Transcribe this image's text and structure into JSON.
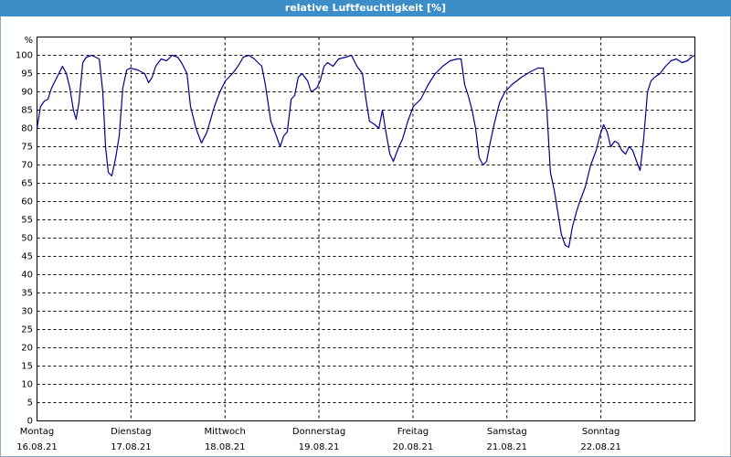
{
  "chart_data": {
    "type": "line",
    "title": "relative Luftfeuchtigkeit [%]",
    "y_label": "%",
    "color": "#00008b",
    "grid": true,
    "xlim": [
      0,
      168
    ],
    "ylim": [
      0,
      105
    ],
    "xticks": [
      {
        "value": 0,
        "label": [
          "Montag",
          "16.08.21"
        ]
      },
      {
        "value": 24,
        "label": [
          "Dienstag",
          "17.08.21"
        ]
      },
      {
        "value": 48,
        "label": [
          "Mittwoch",
          "18.08.21"
        ]
      },
      {
        "value": 72,
        "label": [
          "Donnerstag",
          "19.08.21"
        ]
      },
      {
        "value": 96,
        "label": [
          "Freitag",
          "20.08.21"
        ]
      },
      {
        "value": 120,
        "label": [
          "Samstag",
          "21.08.21"
        ]
      },
      {
        "value": 144,
        "label": [
          "Sonntag",
          "22.08.21"
        ]
      }
    ],
    "yticks": [
      0,
      5,
      10,
      15,
      20,
      25,
      30,
      35,
      40,
      45,
      50,
      55,
      60,
      65,
      70,
      75,
      80,
      85,
      90,
      95,
      100
    ],
    "x": [
      0,
      0.9,
      1.9,
      2.8,
      3.7,
      5.1,
      6.5,
      7.5,
      8.4,
      9.3,
      10,
      10.7,
      11.7,
      12.6,
      14,
      15.9,
      16.3,
      16.8,
      17.5,
      18.2,
      19.1,
      20.1,
      21,
      21.9,
      22.9,
      23.8,
      25.7,
      27.5,
      28.5,
      29.4,
      30.3,
      31.7,
      33.1,
      34.5,
      35.9,
      36.9,
      38.3,
      39.2,
      40.6,
      42,
      43.4,
      45.3,
      46.7,
      48.1,
      49.9,
      51.3,
      52.7,
      54.1,
      55.5,
      57.4,
      58.3,
      59.7,
      61.1,
      62.1,
      63,
      63.9,
      64.9,
      65.8,
      66.7,
      67.7,
      69.1,
      70,
      71.4,
      72.3,
      73.3,
      74.2,
      75.6,
      77,
      78.9,
      80.3,
      81.7,
      83.1,
      84,
      84.9,
      86.3,
      87.3,
      88.2,
      89.1,
      90.1,
      91,
      92.4,
      93.3,
      94.7,
      96.1,
      98,
      99.9,
      101.7,
      103.6,
      105.5,
      107.3,
      108.3,
      109.2,
      110.1,
      111.1,
      112,
      112.9,
      113.9,
      114.8,
      115.7,
      116.7,
      118.1,
      119.5,
      121.3,
      123.7,
      126,
      127.9,
      129.3,
      130.2,
      131.1,
      132.1,
      133,
      133.9,
      134.9,
      135.8,
      136.7,
      137.7,
      138.6,
      140,
      141.4,
      142.8,
      143.7,
      144.7,
      145.6,
      146.5,
      147.5,
      148.4,
      149.3,
      150.3,
      151.2,
      152.1,
      153.1,
      154,
      154.9,
      155.9,
      156.8,
      157.7,
      159.1,
      160.5,
      161.9,
      163.3,
      164.7,
      166.1,
      167.1,
      168
    ],
    "values": [
      80,
      86,
      87.5,
      88,
      91,
      94,
      97,
      95,
      91,
      85,
      82.5,
      87,
      98,
      99.5,
      100,
      99,
      95,
      90,
      75,
      68,
      67,
      72,
      78,
      91,
      96,
      96.5,
      96,
      95,
      92.5,
      94,
      97,
      99,
      98.5,
      100,
      99.5,
      98,
      95,
      86,
      80,
      76,
      79,
      86,
      90,
      93,
      95,
      97,
      99.5,
      100,
      99,
      97,
      92,
      82,
      78,
      75,
      78,
      79,
      88,
      89,
      94,
      95,
      93,
      90,
      91,
      93,
      97,
      98,
      97,
      99,
      99.5,
      100,
      97,
      95,
      88,
      82,
      81,
      80,
      85,
      79,
      73,
      71,
      75,
      77,
      82,
      86,
      88,
      92,
      95,
      97,
      98.5,
      99,
      99,
      92,
      89,
      85,
      80,
      72,
      70,
      71,
      76,
      81,
      87,
      90,
      92,
      94,
      95.5,
      96.5,
      96.5,
      85,
      68,
      63,
      57,
      51,
      48,
      47.5,
      53,
      57,
      60,
      64,
      70,
      74,
      78,
      81,
      79,
      75,
      76.5,
      76,
      74,
      73,
      75,
      74,
      71,
      68.5,
      77,
      90,
      93,
      94,
      95,
      97,
      98.5,
      99,
      98,
      98.5,
      99.5,
      100
    ]
  }
}
